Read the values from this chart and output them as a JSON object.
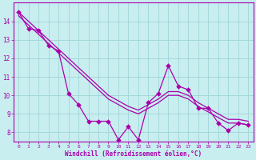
{
  "xlabel": "Windchill (Refroidissement éolien,°C)",
  "x": [
    0,
    1,
    2,
    3,
    4,
    5,
    6,
    7,
    8,
    9,
    10,
    11,
    12,
    13,
    14,
    15,
    16,
    17,
    18,
    19,
    20,
    21,
    22,
    23
  ],
  "y_data": [
    14.5,
    13.6,
    13.5,
    12.7,
    12.4,
    10.1,
    9.5,
    8.6,
    8.6,
    8.6,
    7.6,
    8.3,
    7.6,
    9.6,
    10.1,
    11.6,
    10.5,
    10.3,
    9.3,
    9.3,
    8.5,
    8.1,
    8.5,
    8.4
  ],
  "y_trend1": [
    14.3,
    13.8,
    13.3,
    12.8,
    12.3,
    11.8,
    11.3,
    10.8,
    10.3,
    9.8,
    9.5,
    9.2,
    9.0,
    9.3,
    9.6,
    10.0,
    10.0,
    9.8,
    9.4,
    9.1,
    8.8,
    8.5,
    8.5,
    8.4
  ],
  "y_trend2": [
    14.5,
    14.0,
    13.5,
    13.0,
    12.5,
    12.0,
    11.5,
    11.0,
    10.5,
    10.0,
    9.7,
    9.4,
    9.2,
    9.5,
    9.8,
    10.2,
    10.2,
    10.0,
    9.6,
    9.3,
    9.0,
    8.7,
    8.7,
    8.6
  ],
  "ylim": [
    7.5,
    15.0
  ],
  "yticks": [
    8,
    9,
    10,
    11,
    12,
    13,
    14
  ],
  "xticks": [
    0,
    1,
    2,
    3,
    4,
    5,
    6,
    7,
    8,
    9,
    10,
    11,
    12,
    13,
    14,
    15,
    16,
    17,
    18,
    19,
    20,
    21,
    22,
    23
  ],
  "bg_color": "#c8eef0",
  "grid_color": "#a0d4d8",
  "line_color": "#aa00aa",
  "markersize": 3.0,
  "linewidth": 0.9
}
